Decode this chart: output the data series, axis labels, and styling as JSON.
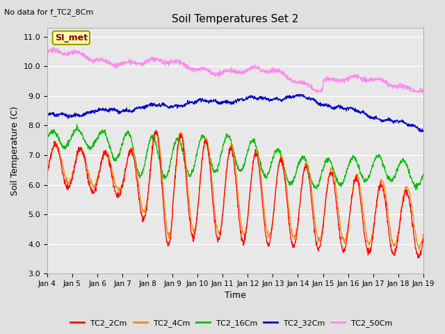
{
  "title": "Soil Temperatures Set 2",
  "top_left_text": "No data for f_TC2_8Cm",
  "xlabel": "Time",
  "ylabel": "Soil Temperature (C)",
  "ylim": [
    3.0,
    11.3
  ],
  "yticks": [
    3.0,
    4.0,
    5.0,
    6.0,
    7.0,
    8.0,
    9.0,
    10.0,
    11.0
  ],
  "xtick_labels": [
    "Jan 4",
    "Jan 5",
    "Jan 6",
    "Jan 7",
    "Jan 8",
    "Jan 9",
    "Jan 10",
    "Jan 11",
    "Jan 12",
    "Jan 13",
    "Jan 14",
    "Jan 15",
    "Jan 16",
    "Jan 17",
    "Jan 18",
    "Jan 19"
  ],
  "annotation_box": "SI_met",
  "colors": {
    "TC2_2Cm": "#ff0000",
    "TC2_4Cm": "#ff8800",
    "TC2_16Cm": "#00bb00",
    "TC2_32Cm": "#0000cc",
    "TC2_50Cm": "#ff88ee"
  },
  "bg_color": "#e0e0e0",
  "plot_bg_color": "#e8e8e8"
}
